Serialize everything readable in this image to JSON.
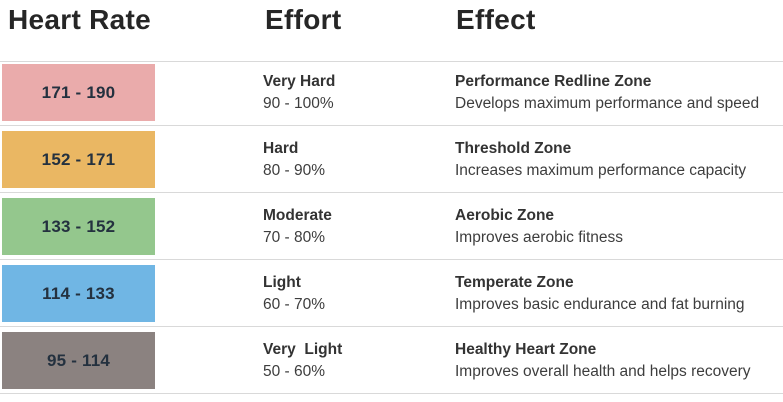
{
  "chart_data": {
    "type": "table",
    "columns": [
      "Heart Rate",
      "Effort",
      "Effect"
    ],
    "rows": [
      {
        "heart_rate": "171 - 190",
        "effort": "Very Hard",
        "intensity": "90 - 100%",
        "zone": "Performance Redline Zone",
        "effect": "Develops maximum performance and speed",
        "color": "#eaabab"
      },
      {
        "heart_rate": "152 - 171",
        "effort": "Hard",
        "intensity": "80 - 90%",
        "zone": "Threshold Zone",
        "effect": "Increases maximum performance capacity",
        "color": "#eab763"
      },
      {
        "heart_rate": "133 - 152",
        "effort": "Moderate",
        "intensity": "70 - 80%",
        "zone": "Aerobic Zone",
        "effect": "Improves aerobic fitness",
        "color": "#94c78d"
      },
      {
        "heart_rate": "114 - 133",
        "effort": "Light",
        "intensity": "60 - 70%",
        "zone": "Temperate Zone",
        "effect": "Improves basic endurance and fat burning",
        "color": "#70b6e4"
      },
      {
        "heart_rate": "95 - 114",
        "effort": "Very  Light",
        "intensity": "50 - 60%",
        "zone": "Healthy Heart Zone",
        "effect": "Improves overall health and helps recovery",
        "color": "#8b8280"
      }
    ]
  },
  "colors": {
    "divider": "#d9d9d9",
    "heading_text": "#262626",
    "band_text": "#24313f",
    "body_text": "#3d3d3d"
  }
}
